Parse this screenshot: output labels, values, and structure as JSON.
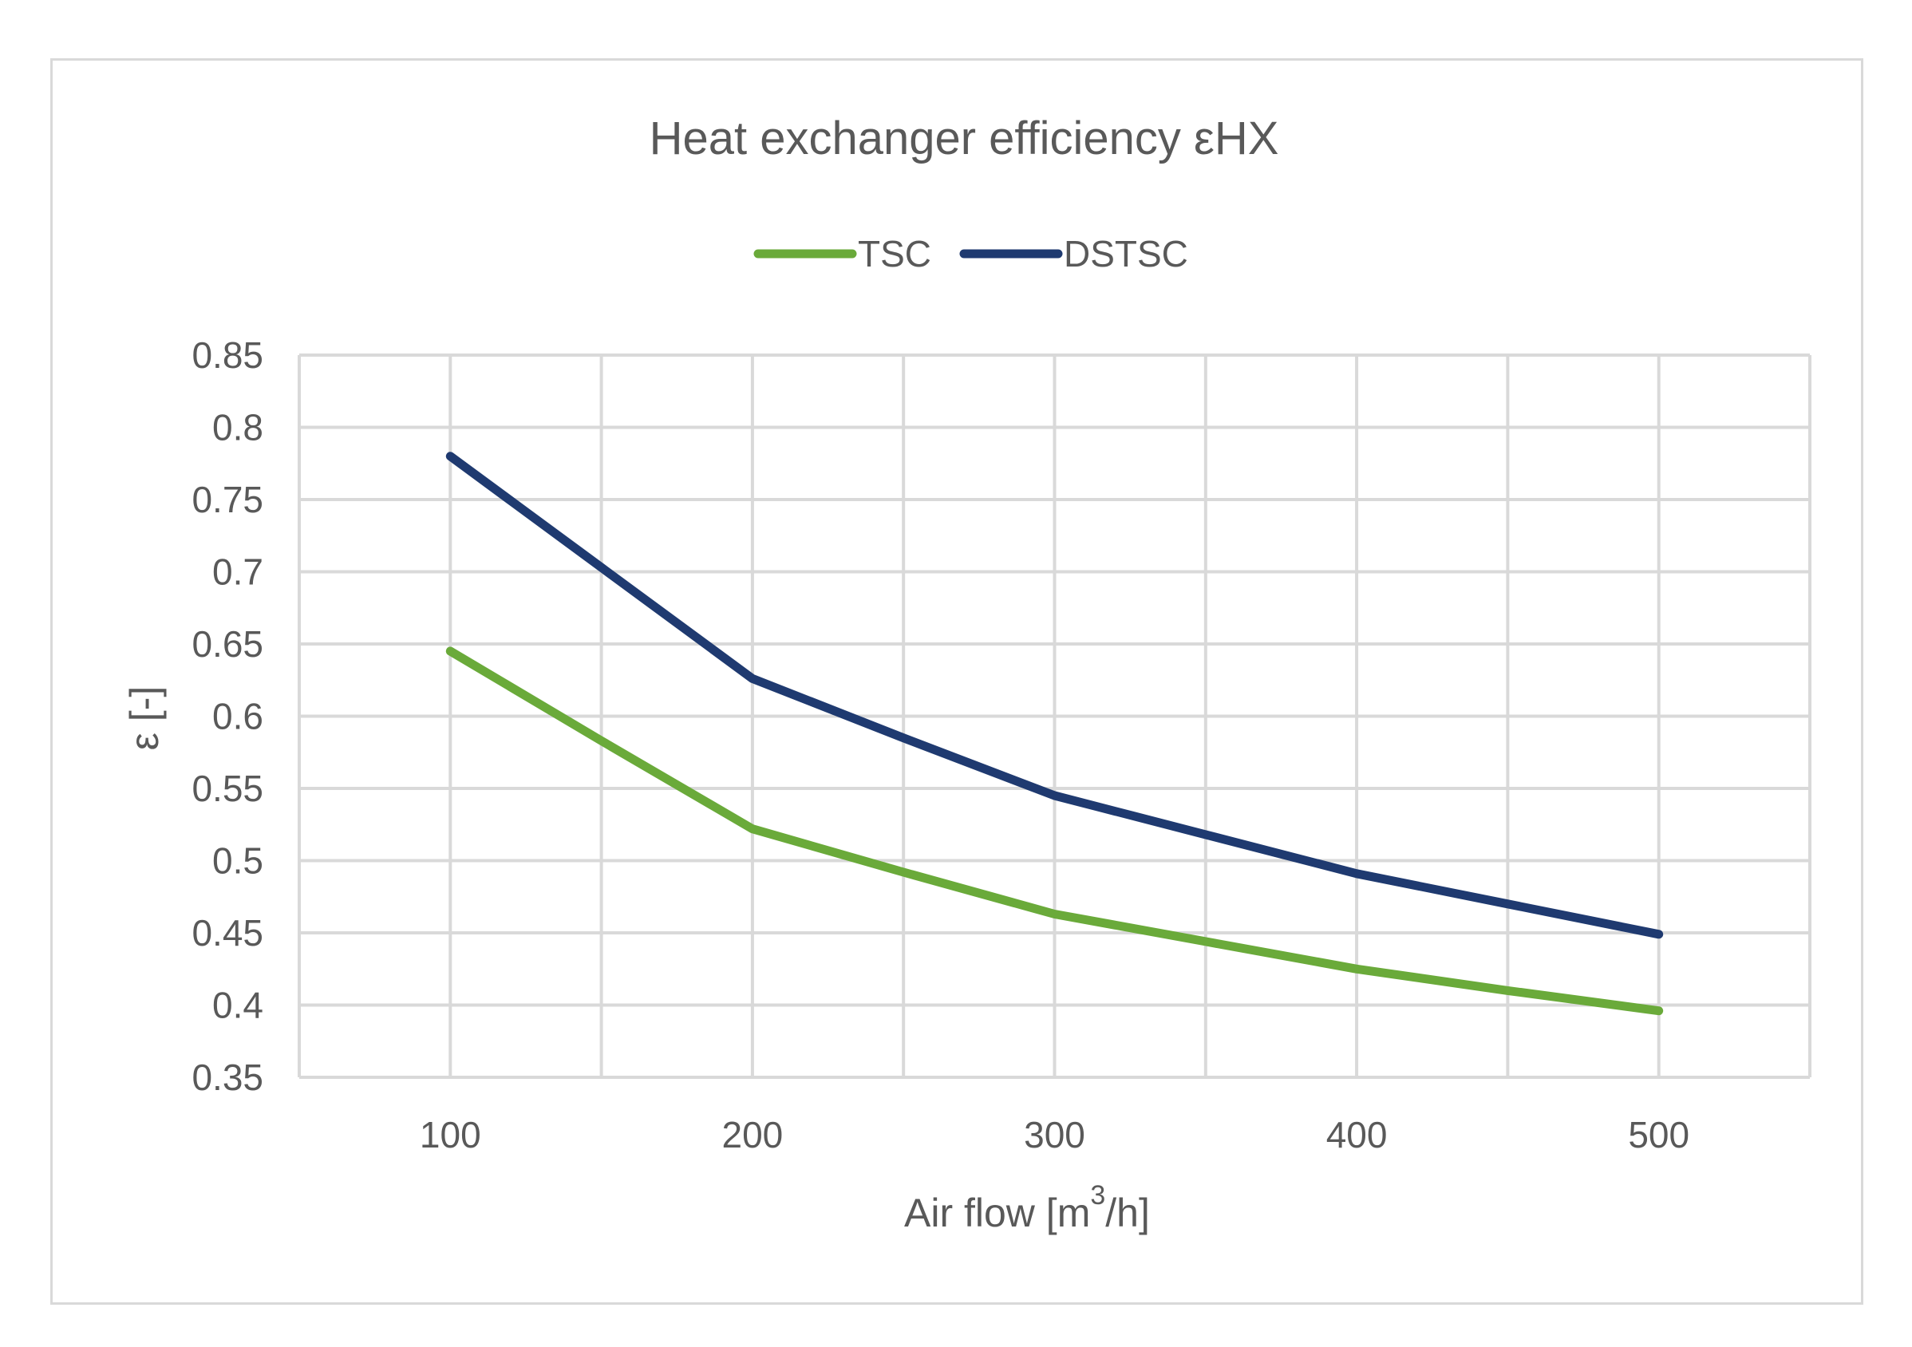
{
  "chart_data": {
    "type": "line",
    "title": "Heat exchanger efficiency εHX",
    "xlabel": "Air flow [m³/h]",
    "xlabel_main": "Air flow [m",
    "xlabel_sup": "3",
    "xlabel_end": "/h]",
    "ylabel": "ε [-]",
    "x": [
      100,
      200,
      300,
      400,
      500
    ],
    "x_ticks": [
      "100",
      "200",
      "300",
      "400",
      "500"
    ],
    "xlim": [
      50,
      550
    ],
    "ylim": [
      0.35,
      0.85
    ],
    "y_ticks": [
      "0.35",
      "0.4",
      "0.45",
      "0.5",
      "0.55",
      "0.6",
      "0.65",
      "0.7",
      "0.75",
      "0.8",
      "0.85"
    ],
    "grid": true,
    "legend_position": "top-center",
    "series": [
      {
        "name": "TSC",
        "color": "#6aaa3a",
        "points": [
          [
            100,
            0.645
          ],
          [
            150,
            0.583
          ],
          [
            200,
            0.522
          ],
          [
            250,
            0.492
          ],
          [
            300,
            0.463
          ],
          [
            350,
            0.444
          ],
          [
            400,
            0.425
          ],
          [
            450,
            0.41
          ],
          [
            500,
            0.396
          ]
        ]
      },
      {
        "name": "DSTSC",
        "color": "#1f3a70",
        "points": [
          [
            100,
            0.78
          ],
          [
            150,
            0.703
          ],
          [
            200,
            0.626
          ],
          [
            250,
            0.585
          ],
          [
            300,
            0.545
          ],
          [
            350,
            0.518
          ],
          [
            400,
            0.491
          ],
          [
            450,
            0.47
          ],
          [
            500,
            0.449
          ]
        ]
      }
    ]
  }
}
